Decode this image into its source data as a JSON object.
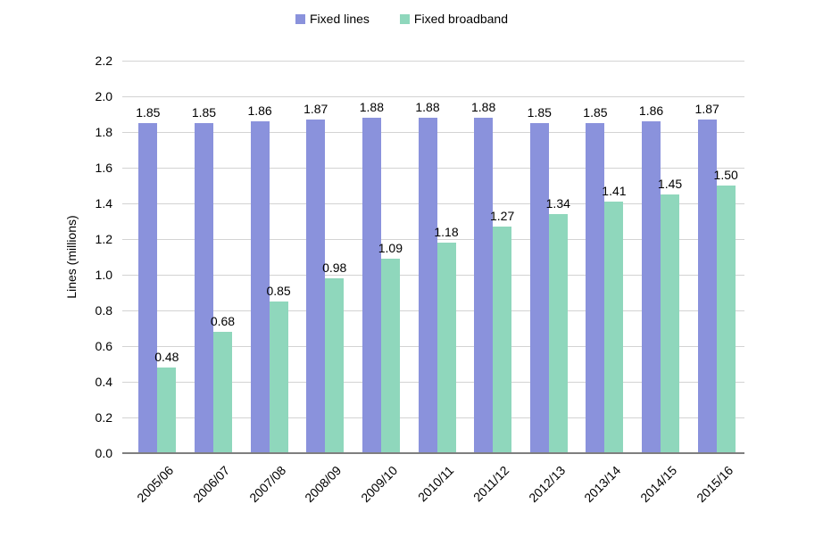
{
  "chart_data": {
    "type": "bar",
    "title": "",
    "categories": [
      "2005/06",
      "2006/07",
      "2007/08",
      "2008/09",
      "2009/10",
      "2010/11",
      "2011/12",
      "2012/13",
      "2013/14",
      "2014/15",
      "2015/16"
    ],
    "series": [
      {
        "name": "Fixed lines",
        "color": "#8a92dc",
        "values": [
          1.85,
          1.85,
          1.86,
          1.87,
          1.88,
          1.88,
          1.88,
          1.85,
          1.85,
          1.86,
          1.87
        ]
      },
      {
        "name": "Fixed broadband",
        "color": "#8fd7bc",
        "values": [
          0.48,
          0.68,
          0.85,
          0.98,
          1.09,
          1.18,
          1.27,
          1.34,
          1.41,
          1.45,
          1.5
        ]
      }
    ],
    "xlabel": "",
    "ylabel": "Lines (millions)",
    "ylim": [
      0,
      2.2
    ],
    "ytick_step": 0.2,
    "grid": true,
    "legend_position": "top",
    "value_labels": true,
    "value_label_decimals": 2,
    "ytick_decimals": 1
  },
  "colors": {
    "gridline": "#d3d3d3",
    "axis_line": "#7f7f7f",
    "text": "#000000",
    "background": "#ffffff"
  }
}
